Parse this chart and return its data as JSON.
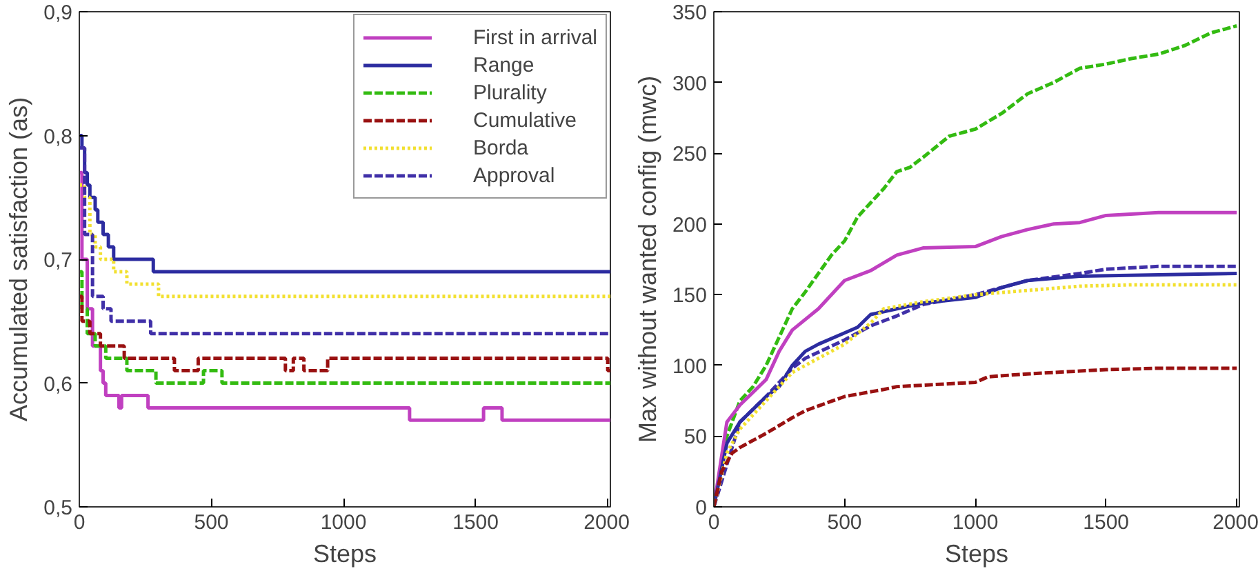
{
  "chart_data": [
    {
      "type": "step",
      "xlabel": "Steps",
      "ylabel": "Accumulated satisfaction (as)",
      "xlim": [
        0,
        2010
      ],
      "ylim": [
        0.5,
        0.9
      ],
      "xticks": [
        0,
        500,
        1000,
        1500,
        2000
      ],
      "yticks": [
        {
          "value": 0.5,
          "label": "0,5"
        },
        {
          "value": 0.6,
          "label": "0,6"
        },
        {
          "value": 0.7,
          "label": "0,7"
        },
        {
          "value": 0.8,
          "label": "0,8"
        },
        {
          "value": 0.9,
          "label": "0,9"
        }
      ],
      "legend": "top right",
      "grid": false,
      "series": [
        {
          "name": "First in arrival",
          "color": "#c040c0",
          "line_style": "solid",
          "x": [
            0,
            10,
            30,
            50,
            80,
            90,
            100,
            150,
            160,
            260,
            1250,
            1530,
            1600,
            2010
          ],
          "values": [
            0.77,
            0.7,
            0.66,
            0.63,
            0.61,
            0.6,
            0.59,
            0.58,
            0.59,
            0.58,
            0.57,
            0.58,
            0.57,
            0.57
          ]
        },
        {
          "name": "Range",
          "color": "#2c2ca0",
          "line_style": "solid",
          "x": [
            0,
            10,
            20,
            30,
            40,
            60,
            70,
            90,
            110,
            130,
            280,
            2010
          ],
          "values": [
            0.8,
            0.79,
            0.77,
            0.76,
            0.75,
            0.74,
            0.73,
            0.72,
            0.71,
            0.7,
            0.69,
            0.69
          ]
        },
        {
          "name": "Plurality",
          "color": "#33bb11",
          "line_style": "dashed",
          "x": [
            0,
            10,
            30,
            60,
            100,
            180,
            290,
            470,
            540,
            2010
          ],
          "values": [
            0.69,
            0.66,
            0.64,
            0.63,
            0.62,
            0.61,
            0.6,
            0.61,
            0.6,
            0.6
          ]
        },
        {
          "name": "Cumulative",
          "color": "#991111",
          "line_style": "dashed",
          "x": [
            0,
            10,
            40,
            80,
            170,
            360,
            450,
            780,
            810,
            850,
            940,
            2000,
            2010
          ],
          "values": [
            0.67,
            0.65,
            0.64,
            0.63,
            0.62,
            0.61,
            0.62,
            0.61,
            0.62,
            0.61,
            0.62,
            0.61,
            0.61
          ]
        },
        {
          "name": "Borda",
          "color": "#f2e030",
          "line_style": "dotted",
          "x": [
            0,
            20,
            40,
            60,
            80,
            130,
            180,
            300,
            2010
          ],
          "values": [
            0.76,
            0.75,
            0.72,
            0.71,
            0.7,
            0.69,
            0.68,
            0.67,
            0.67
          ]
        },
        {
          "name": "Approval",
          "color": "#4030a8",
          "line_style": "dashed",
          "x": [
            0,
            20,
            50,
            90,
            120,
            240,
            270,
            2010
          ],
          "values": [
            0.79,
            0.72,
            0.67,
            0.66,
            0.65,
            0.65,
            0.64,
            0.64
          ]
        }
      ]
    },
    {
      "type": "line",
      "xlabel": "Steps",
      "ylabel": "Max without wanted config (mwc)",
      "xlim": [
        0,
        2010
      ],
      "ylim": [
        0,
        350
      ],
      "xticks": [
        0,
        500,
        1000,
        1500,
        2000
      ],
      "yticks": [
        0,
        50,
        100,
        150,
        200,
        250,
        300,
        350
      ],
      "grid": false,
      "series": [
        {
          "color": "#33bb11",
          "line_style": "dashed",
          "x": [
            0,
            50,
            100,
            150,
            200,
            250,
            300,
            350,
            400,
            450,
            500,
            550,
            600,
            650,
            700,
            750,
            800,
            900,
            1000,
            1100,
            1200,
            1300,
            1400,
            1500,
            1600,
            1700,
            1800,
            1900,
            2000
          ],
          "values": [
            0,
            50,
            75,
            85,
            100,
            120,
            140,
            152,
            165,
            178,
            188,
            205,
            215,
            225,
            237,
            240,
            247,
            262,
            267,
            278,
            292,
            300,
            310,
            313,
            317,
            320,
            326,
            335,
            340
          ]
        },
        {
          "color": "#c040c0",
          "line_style": "solid",
          "x": [
            0,
            50,
            100,
            200,
            250,
            300,
            400,
            500,
            600,
            700,
            800,
            1000,
            1100,
            1200,
            1300,
            1400,
            1500,
            1700,
            2000
          ],
          "values": [
            0,
            60,
            72,
            90,
            110,
            125,
            140,
            160,
            167,
            178,
            183,
            184,
            191,
            196,
            200,
            201,
            206,
            208,
            208
          ]
        },
        {
          "color": "#4030a8",
          "line_style": "dashed",
          "x": [
            0,
            100,
            200,
            300,
            350,
            500,
            600,
            700,
            800,
            1000,
            1200,
            1400,
            1500,
            1700,
            2000
          ],
          "values": [
            0,
            60,
            78,
            98,
            105,
            118,
            128,
            135,
            143,
            150,
            160,
            165,
            168,
            170,
            170
          ]
        },
        {
          "color": "#2c2ca0",
          "line_style": "solid",
          "x": [
            0,
            50,
            100,
            200,
            250,
            300,
            350,
            400,
            500,
            550,
            600,
            700,
            800,
            1000,
            1100,
            1200,
            1400,
            2000
          ],
          "values": [
            0,
            45,
            60,
            78,
            85,
            100,
            110,
            115,
            123,
            127,
            136,
            140,
            144,
            148,
            155,
            160,
            163,
            165
          ]
        },
        {
          "color": "#f2e030",
          "line_style": "dotted",
          "x": [
            0,
            50,
            100,
            200,
            300,
            400,
            500,
            600,
            650,
            800,
            1000,
            1200,
            1400,
            1600,
            2000
          ],
          "values": [
            0,
            38,
            55,
            75,
            95,
            105,
            115,
            130,
            140,
            145,
            150,
            153,
            156,
            157,
            157
          ]
        },
        {
          "color": "#991111",
          "line_style": "dashed",
          "x": [
            0,
            30,
            70,
            100,
            200,
            300,
            350,
            500,
            650,
            700,
            1000,
            1050,
            1200,
            1400,
            1500,
            1700,
            2000
          ],
          "values": [
            0,
            25,
            38,
            42,
            52,
            63,
            68,
            78,
            83,
            85,
            88,
            92,
            94,
            96,
            97,
            98,
            98
          ]
        }
      ]
    }
  ]
}
